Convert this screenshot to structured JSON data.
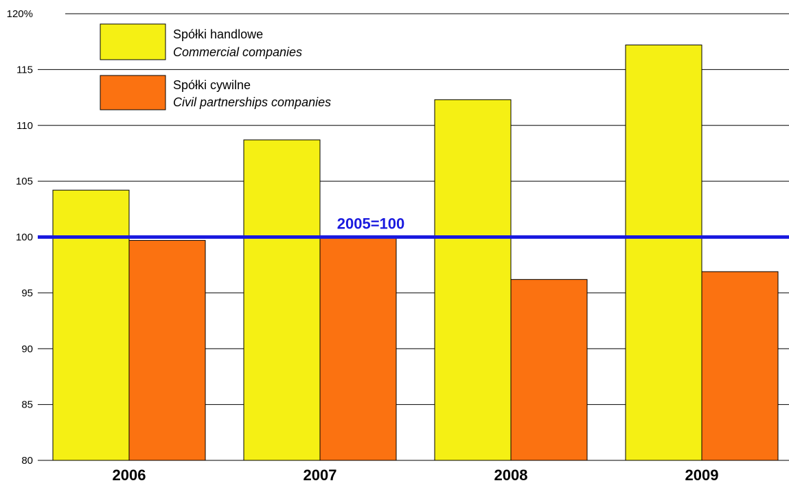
{
  "chart_data": {
    "type": "bar",
    "categories": [
      "2006",
      "2007",
      "2008",
      "2009"
    ],
    "series": [
      {
        "name": "Spółki handlowe",
        "name_en": "Commercial companies",
        "color": "#f5f014",
        "values": [
          104.2,
          108.7,
          112.3,
          117.2
        ]
      },
      {
        "name": "Spółki cywilne",
        "name_en": "Civil partnerships companies",
        "color": "#fb7211",
        "values": [
          99.7,
          100.0,
          96.2,
          96.9
        ]
      }
    ],
    "ylim": [
      80,
      120
    ],
    "yticks": [
      80,
      85,
      90,
      95,
      100,
      105,
      110,
      115,
      120
    ],
    "ytick_labels": [
      "80",
      "85",
      "90",
      "95",
      "100",
      "105",
      "110",
      "115",
      "120%"
    ],
    "grid": true,
    "legend_position": "top-left",
    "reference_line": {
      "value": 100,
      "label": "2005=100",
      "color": "#1a1adf"
    }
  }
}
